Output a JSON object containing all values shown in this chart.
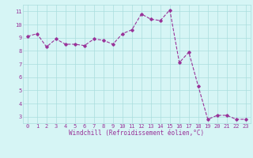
{
  "x": [
    0,
    1,
    2,
    3,
    4,
    5,
    6,
    7,
    8,
    9,
    10,
    11,
    12,
    13,
    14,
    15,
    16,
    17,
    18,
    19,
    20,
    21,
    22,
    23
  ],
  "y": [
    9.1,
    9.3,
    8.3,
    8.9,
    8.5,
    8.5,
    8.4,
    8.9,
    8.8,
    8.5,
    9.3,
    9.6,
    10.8,
    10.4,
    10.3,
    11.1,
    7.1,
    7.9,
    5.3,
    2.8,
    3.1,
    3.1,
    2.8,
    2.8
  ],
  "line_color": "#993399",
  "marker": "D",
  "marker_size": 1.8,
  "line_width": 0.8,
  "line_style": "--",
  "bg_color": "#d6f5f5",
  "grid_color": "#aadddd",
  "xlabel": "Windchill (Refroidissement éolien,°C)",
  "tick_color": "#993399",
  "ylim": [
    2.5,
    11.5
  ],
  "yticks": [
    3,
    4,
    5,
    6,
    7,
    8,
    9,
    10,
    11
  ],
  "xlim": [
    -0.5,
    23.5
  ],
  "xticks": [
    0,
    1,
    2,
    3,
    4,
    5,
    6,
    7,
    8,
    9,
    10,
    11,
    12,
    13,
    14,
    15,
    16,
    17,
    18,
    19,
    20,
    21,
    22,
    23
  ],
  "tick_fontsize": 5.0,
  "xlabel_fontsize": 5.5
}
